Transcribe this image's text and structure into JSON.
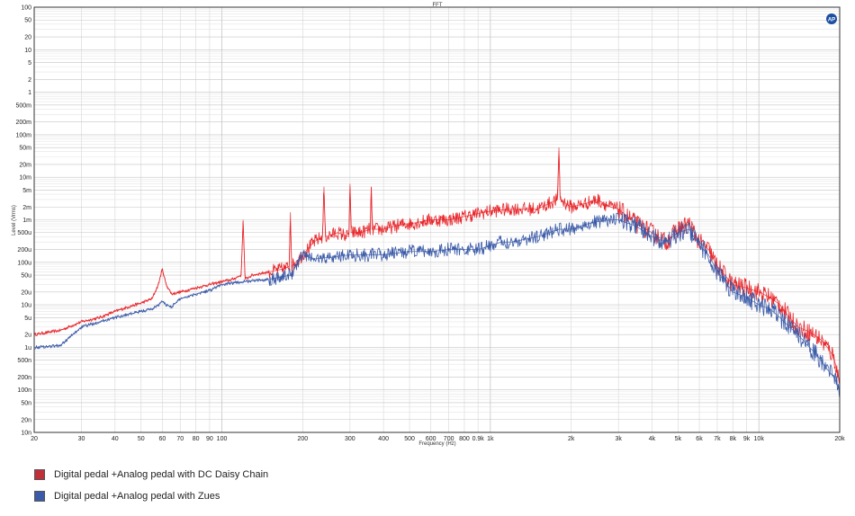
{
  "chart_data": {
    "type": "line",
    "title": "FFT",
    "xlabel": "Frequency (Hz)",
    "ylabel": "Level (Vrms)",
    "x_scale": "log",
    "y_scale": "log",
    "xlim": [
      20,
      20000
    ],
    "ylim": [
      1e-08,
      100
    ],
    "grid": true,
    "legend_position": "bottom-left",
    "x_tick_labels": [
      {
        "value": 20,
        "label": "20"
      },
      {
        "value": 30,
        "label": "30"
      },
      {
        "value": 40,
        "label": "40"
      },
      {
        "value": 50,
        "label": "50"
      },
      {
        "value": 60,
        "label": "60"
      },
      {
        "value": 70,
        "label": "70"
      },
      {
        "value": 80,
        "label": "80"
      },
      {
        "value": 90,
        "label": "90"
      },
      {
        "value": 100,
        "label": "100"
      },
      {
        "value": 200,
        "label": "200"
      },
      {
        "value": 300,
        "label": "300"
      },
      {
        "value": 400,
        "label": "400"
      },
      {
        "value": 500,
        "label": "500"
      },
      {
        "value": 600,
        "label": "600"
      },
      {
        "value": 700,
        "label": "700"
      },
      {
        "value": 800,
        "label": "800"
      },
      {
        "value": 900,
        "label": "0.9k"
      },
      {
        "value": 1000,
        "label": "1k"
      },
      {
        "value": 2000,
        "label": "2k"
      },
      {
        "value": 3000,
        "label": "3k"
      },
      {
        "value": 4000,
        "label": "4k"
      },
      {
        "value": 5000,
        "label": "5k"
      },
      {
        "value": 6000,
        "label": "6k"
      },
      {
        "value": 7000,
        "label": "7k"
      },
      {
        "value": 8000,
        "label": "8k"
      },
      {
        "value": 9000,
        "label": "9k"
      },
      {
        "value": 10000,
        "label": "10k"
      },
      {
        "value": 20000,
        "label": "20k"
      }
    ],
    "y_tick_labels": [
      {
        "value": 100,
        "label": "100"
      },
      {
        "value": 50,
        "label": "50"
      },
      {
        "value": 20,
        "label": "20"
      },
      {
        "value": 10,
        "label": "10"
      },
      {
        "value": 5,
        "label": "5"
      },
      {
        "value": 2,
        "label": "2"
      },
      {
        "value": 1,
        "label": "1"
      },
      {
        "value": 0.5,
        "label": "500m"
      },
      {
        "value": 0.2,
        "label": "200m"
      },
      {
        "value": 0.1,
        "label": "100m"
      },
      {
        "value": 0.05,
        "label": "50m"
      },
      {
        "value": 0.02,
        "label": "20m"
      },
      {
        "value": 0.01,
        "label": "10m"
      },
      {
        "value": 0.005,
        "label": "5m"
      },
      {
        "value": 0.002,
        "label": "2m"
      },
      {
        "value": 0.001,
        "label": "1m"
      },
      {
        "value": 0.0005,
        "label": "500u"
      },
      {
        "value": 0.0002,
        "label": "200u"
      },
      {
        "value": 0.0001,
        "label": "100u"
      },
      {
        "value": 5e-05,
        "label": "50u"
      },
      {
        "value": 2e-05,
        "label": "20u"
      },
      {
        "value": 1e-05,
        "label": "10u"
      },
      {
        "value": 5e-06,
        "label": "5u"
      },
      {
        "value": 2e-06,
        "label": "2u"
      },
      {
        "value": 1e-06,
        "label": "1u"
      },
      {
        "value": 5e-07,
        "label": "500n"
      },
      {
        "value": 2e-07,
        "label": "200n"
      },
      {
        "value": 1e-07,
        "label": "100n"
      },
      {
        "value": 5e-08,
        "label": "50n"
      },
      {
        "value": 2e-08,
        "label": "20n"
      },
      {
        "value": 1e-08,
        "label": "10n"
      }
    ],
    "series": [
      {
        "name": "Digital pedal +Analog pedal with DC Daisy Chain",
        "color": "#e8262b",
        "x": [
          20,
          25,
          30,
          35,
          40,
          45,
          50,
          55,
          58,
          60,
          62,
          65,
          70,
          80,
          90,
          100,
          110,
          118,
          120,
          122,
          130,
          150,
          170,
          178,
          180,
          182,
          200,
          220,
          237,
          240,
          243,
          270,
          297,
          300,
          303,
          330,
          357,
          360,
          363,
          400,
          480,
          500,
          600,
          700,
          800,
          900,
          1000,
          1200,
          1500,
          1780,
          1800,
          1820,
          2000,
          2300,
          2500,
          2800,
          3000,
          3500,
          4000,
          4500,
          5000,
          5500,
          6000,
          6500,
          7000,
          8000,
          9000,
          10000,
          11000,
          12000,
          13000,
          14000,
          15000,
          16000,
          17000,
          18000,
          19000,
          20000
        ],
        "y": [
          2e-06,
          2.5e-06,
          4e-06,
          5e-06,
          7e-06,
          9e-06,
          1.1e-05,
          1.4e-05,
          3e-05,
          7e-05,
          3e-05,
          1.8e-05,
          2e-05,
          2.5e-05,
          3e-05,
          3.5e-05,
          4e-05,
          5e-05,
          0.001,
          4e-05,
          5e-05,
          6e-05,
          7e-05,
          8e-05,
          0.0015,
          8e-05,
          0.00015,
          0.0003,
          0.0004,
          0.006,
          0.0004,
          0.0005,
          0.0004,
          0.007,
          0.0005,
          0.0005,
          0.0006,
          0.006,
          0.0006,
          0.0006,
          0.0008,
          0.0008,
          0.001,
          0.001,
          0.0012,
          0.0014,
          0.0016,
          0.0018,
          0.0018,
          0.003,
          0.05,
          0.003,
          0.002,
          0.0025,
          0.003,
          0.002,
          0.0018,
          0.0008,
          0.0005,
          0.0003,
          0.0006,
          0.0008,
          0.0003,
          0.0002,
          8e-05,
          3e-05,
          2.5e-05,
          2e-05,
          1.5e-05,
          1e-05,
          5e-06,
          3e-06,
          2.5e-06,
          2e-06,
          1.5e-06,
          1e-06,
          6e-07,
          1.5e-07
        ]
      },
      {
        "name": "Digital pedal +Analog pedal with Zues",
        "color": "#3b5ba8",
        "x": [
          20,
          25,
          30,
          35,
          40,
          45,
          50,
          55,
          58,
          60,
          62,
          65,
          70,
          80,
          90,
          100,
          120,
          150,
          180,
          200,
          220,
          250,
          300,
          400,
          500,
          600,
          700,
          800,
          900,
          1000,
          1100,
          1200,
          1500,
          1800,
          2000,
          2300,
          2500,
          2800,
          3000,
          3500,
          4000,
          4500,
          5000,
          5500,
          6000,
          6500,
          7000,
          8000,
          9000,
          10000,
          11000,
          12000,
          13000,
          14000,
          15000,
          16000,
          17000,
          18000,
          19000,
          20000
        ],
        "y": [
          1e-06,
          1.1e-06,
          3e-06,
          4e-06,
          5e-06,
          6e-06,
          7e-06,
          8e-06,
          1e-05,
          1.2e-05,
          1e-05,
          9e-06,
          1.4e-05,
          1.8e-05,
          2.2e-05,
          3e-05,
          3.5e-05,
          4e-05,
          5e-05,
          0.00015,
          0.00012,
          0.00013,
          0.00015,
          0.00015,
          0.00018,
          0.00018,
          0.0002,
          0.0002,
          0.0002,
          0.00025,
          0.0003,
          0.0003,
          0.0004,
          0.0006,
          0.0006,
          0.0008,
          0.0009,
          0.001,
          0.001,
          0.0007,
          0.0004,
          0.0003,
          0.0005,
          0.0006,
          0.00025,
          0.00015,
          6e-05,
          2e-05,
          1.5e-05,
          1e-05,
          8e-06,
          5e-06,
          3e-06,
          2e-06,
          1.2e-06,
          8e-07,
          5e-07,
          3e-07,
          2e-07,
          1e-07
        ]
      }
    ]
  },
  "legend": {
    "items": [
      {
        "label": "Digital pedal +Analog pedal with DC Daisy Chain",
        "color": "#c0303a"
      },
      {
        "label": "Digital pedal +Analog pedal with Zues",
        "color": "#3b5ba8"
      }
    ]
  },
  "logo": {
    "text": "AP"
  }
}
